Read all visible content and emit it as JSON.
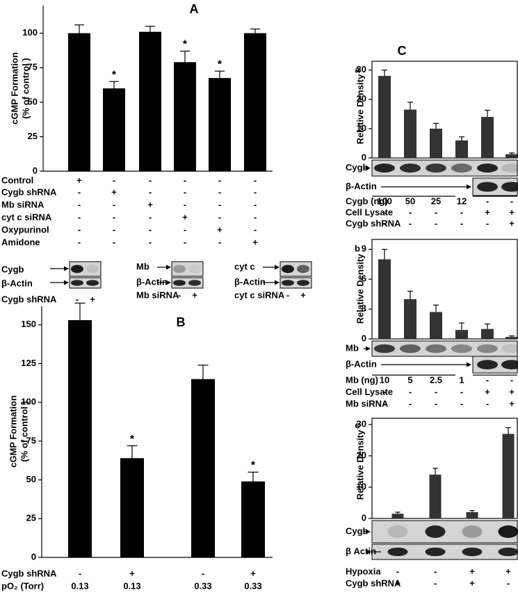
{
  "chart_data": [
    {
      "type": "bar",
      "title": "A",
      "ylabel": [
        "cGMP Formation",
        "(% of control )"
      ],
      "values": [
        100,
        60,
        101,
        79,
        67.5,
        100
      ],
      "errors": [
        6,
        5,
        4,
        8,
        5,
        3
      ],
      "significance": [
        null,
        "*",
        null,
        "*",
        "*",
        null
      ],
      "color": "#000000",
      "ylim": [
        0,
        120
      ],
      "yticks": [
        0,
        25,
        50,
        75,
        100
      ],
      "conditions": [
        {
          "name": "Control",
          "values": [
            "+",
            "-",
            "-",
            "-",
            "-",
            "-"
          ]
        },
        {
          "name": "Cygb shRNA",
          "values": [
            "-",
            "+",
            "-",
            "-",
            "-",
            "-"
          ]
        },
        {
          "name": "Mb siRNA",
          "values": [
            "-",
            "-",
            "+",
            "-",
            "-",
            "-"
          ]
        },
        {
          "name": "cyt c siRNA",
          "values": [
            "-",
            "-",
            "-",
            "+",
            "-",
            "-"
          ]
        },
        {
          "name": "Oxypurinol",
          "values": [
            "-",
            "-",
            "-",
            "-",
            "+",
            "-"
          ]
        },
        {
          "name": "Amidone",
          "values": [
            "-",
            "-",
            "-",
            "-",
            "-",
            "+"
          ]
        }
      ],
      "blots": [
        {
          "labels": [
            "Cygb",
            "β-Actin"
          ],
          "condition": "Cygb shRNA",
          "lanes": [
            "-",
            "+"
          ]
        },
        {
          "labels": [
            "Mb",
            "β-Actin"
          ],
          "condition": "Mb siRNA",
          "lanes": [
            "-",
            "+"
          ]
        },
        {
          "labels": [
            "cyt c",
            "β-Actin"
          ],
          "condition": "cyt c siRNA",
          "lanes": [
            "-",
            "+"
          ]
        }
      ]
    },
    {
      "type": "bar",
      "title": "B",
      "ylabel": [
        "cGMP Formation",
        "(% of control )"
      ],
      "values": [
        153,
        64,
        115,
        49
      ],
      "errors": [
        11,
        8,
        9,
        6
      ],
      "significance": [
        null,
        "*",
        null,
        "*"
      ],
      "color": "#000000",
      "ylim": [
        0,
        162
      ],
      "yticks": [
        0,
        25,
        50,
        75,
        100,
        125,
        150
      ],
      "conditions": [
        {
          "name": "Cygb shRNA",
          "values": [
            "-",
            "+",
            "-",
            "+"
          ]
        },
        {
          "name": "pO₂ (Torr)",
          "values": [
            "0.13",
            "0.13",
            "0.33",
            "0.33"
          ]
        }
      ]
    },
    {
      "type": "bar",
      "title": "C",
      "label": "a",
      "ylabel": [
        "Relative Density"
      ],
      "values": [
        28,
        16.5,
        10,
        6,
        14,
        1.3
      ],
      "errors": [
        2,
        2.5,
        1.8,
        1.2,
        2.3,
        0.4
      ],
      "color": "#333333",
      "ylim": [
        0,
        33
      ],
      "yticks": [
        0,
        10,
        20,
        30
      ],
      "blot_labels": [
        "Cygb",
        "β-Actin"
      ],
      "conditions": [
        {
          "name": "Cygb (ng)",
          "values": [
            "100",
            "50",
            "25",
            "12",
            "-",
            "-"
          ]
        },
        {
          "name": "Cell Lysate",
          "values": [
            "-",
            "-",
            "-",
            "-",
            "+",
            "+"
          ]
        },
        {
          "name": "Cygb shRNA",
          "values": [
            "-",
            "-",
            "-",
            "-",
            "-",
            "+"
          ]
        }
      ]
    },
    {
      "type": "bar",
      "label": "b",
      "ylabel": [
        "Relative Density"
      ],
      "values": [
        8,
        4,
        2.7,
        0.9,
        1,
        0.2
      ],
      "errors": [
        1,
        0.8,
        0.7,
        0.7,
        0.5,
        0.1
      ],
      "color": "#333333",
      "ylim": [
        0,
        10
      ],
      "yticks": [
        0,
        3,
        6,
        9
      ],
      "blot_labels": [
        "Mb",
        "β-Actin"
      ],
      "conditions": [
        {
          "name": "Mb (ng)",
          "values": [
            "10",
            "5",
            "2.5",
            "1",
            "-",
            "-"
          ]
        },
        {
          "name": "Cell Lysate",
          "values": [
            "-",
            "-",
            "-",
            "-",
            "+",
            "+"
          ]
        },
        {
          "name": "Mb siRNA",
          "values": [
            "-",
            "-",
            "-",
            "-",
            "-",
            "+"
          ]
        }
      ]
    },
    {
      "type": "bar",
      "label": "c",
      "ylabel": [
        "Relative Density"
      ],
      "values": [
        1.5,
        14,
        2,
        27
      ],
      "errors": [
        0.5,
        2,
        0.5,
        2
      ],
      "color": "#333333",
      "ylim": [
        0,
        32
      ],
      "yticks": [
        0,
        10,
        20,
        30
      ],
      "blot_labels": [
        "Cygb",
        "β Actin"
      ],
      "conditions": [
        {
          "name": "Hypoxia",
          "values": [
            "-",
            "-",
            "+",
            "+"
          ]
        },
        {
          "name": "Cygb shRNA",
          "values": [
            "+",
            "-",
            "+",
            "-"
          ]
        }
      ]
    }
  ]
}
